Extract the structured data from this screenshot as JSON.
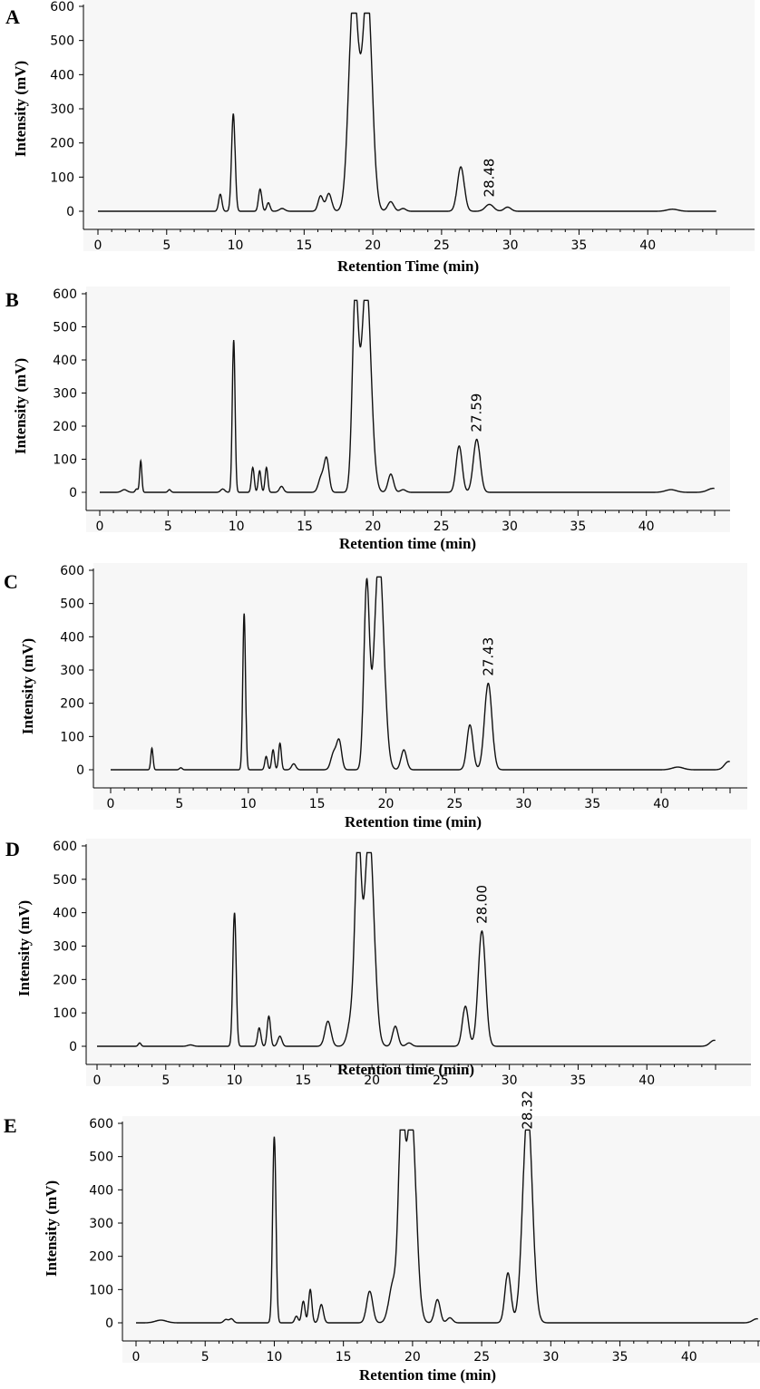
{
  "chart_data": [
    {
      "type": "line",
      "panel_label": "A",
      "xlabel": "Retention Time (min)",
      "ylabel": "Intensity (mV)",
      "xlim": [
        0,
        45
      ],
      "ylim": [
        0,
        600
      ],
      "x_ticks": [
        0,
        5,
        10,
        15,
        20,
        25,
        30,
        35,
        40
      ],
      "y_ticks": [
        0,
        100,
        200,
        300,
        400,
        500,
        600
      ],
      "annotations": [
        {
          "text": "28.48",
          "x": 28.48,
          "y": 20
        }
      ],
      "peaks": [
        [
          8.9,
          50,
          0.12
        ],
        [
          9.85,
          285,
          0.13
        ],
        [
          11.8,
          65,
          0.12
        ],
        [
          12.4,
          25,
          0.12
        ],
        [
          13.4,
          8,
          0.2
        ],
        [
          16.2,
          45,
          0.18
        ],
        [
          16.8,
          52,
          0.2
        ],
        [
          18.6,
          640,
          0.35
        ],
        [
          19.6,
          640,
          0.35
        ],
        [
          21.3,
          28,
          0.22
        ],
        [
          22.2,
          8,
          0.2
        ],
        [
          26.4,
          130,
          0.25
        ],
        [
          28.48,
          20,
          0.3
        ],
        [
          29.8,
          12,
          0.25
        ],
        [
          41.8,
          6,
          0.4
        ]
      ],
      "baseline": 0,
      "clip": 580
    },
    {
      "type": "line",
      "panel_label": "B",
      "xlabel": "Retention time (min)",
      "ylabel": "Intensity (mV)",
      "xlim": [
        0,
        45
      ],
      "ylim": [
        0,
        600
      ],
      "x_ticks": [
        0,
        5,
        10,
        15,
        20,
        25,
        30,
        35,
        40
      ],
      "y_ticks": [
        0,
        100,
        200,
        300,
        400,
        500,
        600
      ],
      "annotations": [
        {
          "text": "27.59",
          "x": 27.59,
          "y": 160
        }
      ],
      "peaks": [
        [
          1.8,
          8,
          0.2
        ],
        [
          2.7,
          10,
          0.1
        ],
        [
          3.0,
          95,
          0.08
        ],
        [
          5.1,
          8,
          0.1
        ],
        [
          9.0,
          10,
          0.15
        ],
        [
          9.8,
          460,
          0.1
        ],
        [
          11.2,
          75,
          0.1
        ],
        [
          11.7,
          65,
          0.1
        ],
        [
          12.2,
          75,
          0.1
        ],
        [
          13.3,
          18,
          0.15
        ],
        [
          16.2,
          45,
          0.2
        ],
        [
          16.6,
          100,
          0.18
        ],
        [
          18.7,
          570,
          0.22
        ],
        [
          19.5,
          640,
          0.35
        ],
        [
          21.3,
          55,
          0.2
        ],
        [
          22.2,
          8,
          0.2
        ],
        [
          26.3,
          140,
          0.22
        ],
        [
          27.59,
          160,
          0.25
        ],
        [
          41.8,
          8,
          0.4
        ],
        [
          44.9,
          12,
          0.4
        ]
      ],
      "baseline": 0,
      "clip": 580
    },
    {
      "type": "line",
      "panel_label": "C",
      "xlabel": "Retention time (min)",
      "ylabel": "Intensity (mV)",
      "xlim": [
        0,
        45
      ],
      "ylim": [
        0,
        600
      ],
      "x_ticks": [
        0,
        5,
        10,
        15,
        20,
        25,
        30,
        35,
        40
      ],
      "y_ticks": [
        0,
        100,
        200,
        300,
        400,
        500,
        600
      ],
      "annotations": [
        {
          "text": "27.43",
          "x": 27.43,
          "y": 260
        }
      ],
      "peaks": [
        [
          3.0,
          65,
          0.08
        ],
        [
          5.1,
          6,
          0.1
        ],
        [
          9.7,
          470,
          0.1
        ],
        [
          11.3,
          40,
          0.1
        ],
        [
          11.8,
          60,
          0.1
        ],
        [
          12.3,
          80,
          0.1
        ],
        [
          13.3,
          18,
          0.15
        ],
        [
          16.2,
          50,
          0.2
        ],
        [
          16.6,
          85,
          0.18
        ],
        [
          18.6,
          550,
          0.2
        ],
        [
          19.5,
          640,
          0.35
        ],
        [
          21.3,
          60,
          0.2
        ],
        [
          26.1,
          135,
          0.22
        ],
        [
          27.43,
          260,
          0.27
        ],
        [
          41.2,
          8,
          0.4
        ],
        [
          44.9,
          25,
          0.3
        ]
      ],
      "baseline": 0,
      "clip": 580
    },
    {
      "type": "line",
      "panel_label": "D",
      "xlabel": "Retention time (min)",
      "ylabel": "Intensity (mV)",
      "xlim": [
        0,
        45
      ],
      "ylim": [
        0,
        600
      ],
      "x_ticks": [
        0,
        5,
        10,
        15,
        20,
        25,
        30,
        35,
        40
      ],
      "y_ticks": [
        0,
        100,
        200,
        300,
        400,
        500,
        600
      ],
      "annotations": [
        {
          "text": "28.00",
          "x": 28.0,
          "y": 345
        }
      ],
      "peaks": [
        [
          3.1,
          10,
          0.1
        ],
        [
          6.8,
          4,
          0.2
        ],
        [
          10.0,
          400,
          0.12
        ],
        [
          11.8,
          55,
          0.12
        ],
        [
          12.5,
          90,
          0.12
        ],
        [
          13.3,
          30,
          0.15
        ],
        [
          16.8,
          75,
          0.22
        ],
        [
          18.6,
          100,
          0.3
        ],
        [
          19.0,
          560,
          0.22
        ],
        [
          19.8,
          640,
          0.35
        ],
        [
          21.7,
          60,
          0.2
        ],
        [
          22.7,
          10,
          0.2
        ],
        [
          26.8,
          120,
          0.22
        ],
        [
          28.0,
          345,
          0.27
        ],
        [
          44.9,
          18,
          0.3
        ]
      ],
      "baseline": 0,
      "clip": 580
    },
    {
      "type": "line",
      "panel_label": "E",
      "xlabel": "Retention time (min)",
      "ylabel": "Intensity (mV)",
      "xlim": [
        0,
        45
      ],
      "ylim": [
        0,
        600
      ],
      "x_ticks": [
        0,
        5,
        10,
        15,
        20,
        25,
        30,
        35,
        40
      ],
      "y_ticks": [
        0,
        100,
        200,
        300,
        400,
        500,
        600
      ],
      "annotations": [
        {
          "text": "28.32",
          "x": 28.32,
          "y": 560
        }
      ],
      "peaks": [
        [
          1.8,
          8,
          0.4
        ],
        [
          6.5,
          10,
          0.15
        ],
        [
          6.9,
          12,
          0.15
        ],
        [
          10.0,
          560,
          0.12
        ],
        [
          11.6,
          20,
          0.12
        ],
        [
          12.1,
          65,
          0.12
        ],
        [
          12.6,
          100,
          0.12
        ],
        [
          13.4,
          55,
          0.15
        ],
        [
          16.9,
          95,
          0.22
        ],
        [
          18.6,
          120,
          0.3
        ],
        [
          19.2,
          560,
          0.22
        ],
        [
          19.9,
          640,
          0.35
        ],
        [
          21.8,
          70,
          0.2
        ],
        [
          22.7,
          15,
          0.2
        ],
        [
          26.9,
          150,
          0.22
        ],
        [
          28.32,
          640,
          0.35
        ],
        [
          44.9,
          12,
          0.3
        ]
      ],
      "baseline": 0,
      "clip": 580
    }
  ]
}
